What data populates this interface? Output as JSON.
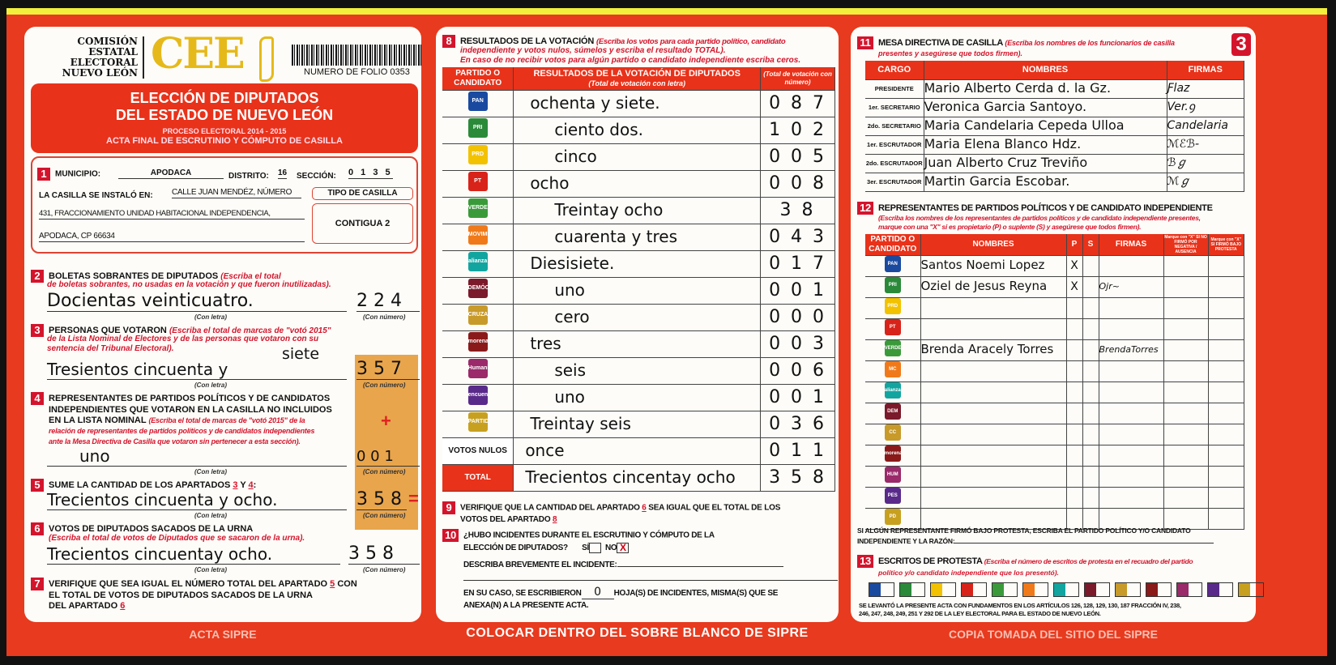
{
  "header": {
    "org": "COMISIÓN ESTATAL ELECTORAL NUEVO LEÓN",
    "org_lines": [
      "COMISIÓN",
      "ESTATAL",
      "ELECTORAL",
      "NUEVO LEÓN"
    ],
    "logo": "CEE",
    "folio": "NUMERO DE FOLIO 0353",
    "title1": "ELECCIÓN DE DIPUTADOS",
    "title2": "DEL ESTADO DE NUEVO LEÓN",
    "process": "PROCESO ELECTORAL 2014 - 2015",
    "acta": "ACTA FINAL DE ESCRUTINIO Y CÓMPUTO DE CASILLA",
    "page_number": "3"
  },
  "s1": {
    "num": "1",
    "municipio_label": "MUNICIPIO:",
    "municipio": "APODACA",
    "distrito_label": "DISTRITO:",
    "distrito": "16",
    "seccion_label": "SECCIÓN:",
    "seccion": "0 1 3 5",
    "instalo_label": "LA CASILLA SE INSTALÓ EN:",
    "address1": "CALLE JUAN MENDÉZ, NÚMERO",
    "address2": "431, FRACCIONAMIENTO UNIDAD HABITACIONAL INDEPENDENCIA,",
    "address3": "APODACA, CP 66634",
    "tipo_label": "TIPO DE CASILLA",
    "tipo": "CONTIGUA 2"
  },
  "labels": {
    "con_letra": "(Con letra)",
    "con_numero": "(Con número)"
  },
  "s2": {
    "num": "2",
    "title": "BOLETAS SOBRANTES DE DIPUTADOS",
    "note1": "(Escriba el total",
    "note2": "de boletas sobrantes, no usadas en la votación y que fueron inutilizadas).",
    "letra": "Docientas veinticuatro.",
    "numero": "2 2 4"
  },
  "s3": {
    "num": "3",
    "title": "PERSONAS QUE VOTARON",
    "note1": "(Escriba el total de marcas de \"votó 2015\"",
    "note2": "de la Lista Nominal de Electores y de las personas que votaron con su",
    "note3": "sentencia del Tribunal Electoral).",
    "letra": "Tresientos cincuenta y",
    "correction": "siete",
    "numero": "3 5 7"
  },
  "s4": {
    "num": "4",
    "title1": "REPRESENTANTES DE PARTIDOS POLÍTICOS Y DE CANDIDATOS",
    "title2": "INDEPENDIENTES QUE VOTARON EN LA CASILLA NO INCLUIDOS",
    "title3": "EN LA LISTA NOMINAL",
    "note1": "(Escriba el total de marcas de \"votó 2015\" de la",
    "note2": "relación de representantes de partidos políticos y de candidatos independientes",
    "note3": "ante la Mesa Directiva de Casilla que votaron sin pertenecer a esta sección).",
    "letra": "uno",
    "numero": "0 0 1",
    "plus": "+"
  },
  "s5": {
    "num": "5",
    "title": "SUME LA CANTIDAD DE LOS APARTADOS",
    "a": "3",
    "y": "Y",
    "b": "4",
    "colon": ":",
    "letra": "Trecientos cincuenta y ocho.",
    "numero": "3 5 8",
    "equals": "="
  },
  "s6": {
    "num": "6",
    "title": "VOTOS DE DIPUTADOS SACADOS DE LA URNA",
    "note": "(Escriba el total de votos de Diputados que se sacaron de la urna).",
    "letra": "Trecientos cincuentay ocho.",
    "numero": "3 5 8"
  },
  "s7": {
    "num": "7",
    "text1": "VERIFIQUE QUE SEA IGUAL EL NÚMERO TOTAL DEL APARTADO",
    "ref1": "5",
    "text1b": "CON",
    "text2": "EL TOTAL DE VOTOS DE DIPUTADOS SACADOS DE LA URNA",
    "text3": "DEL APARTADO",
    "ref2": "6"
  },
  "s8": {
    "num": "8",
    "title": "RESULTADOS DE LA VOTACIÓN",
    "note1": "(Escriba los votos para cada partido político, candidato",
    "note2": "independiente y votos nulos, súmelos y escriba el resultado TOTAL).",
    "note3": "En caso de no recibir votos para algún partido o candidato independiente escriba ceros.",
    "col1": "PARTIDO O CANDIDATO",
    "col2": "RESULTADOS DE LA VOTACIÓN DE DIPUTADOS",
    "col2sub": "(Total de votación con letra)",
    "col3": "(Total de votación con número)",
    "rows": [
      {
        "party": "PAN",
        "color": "#1a4aa0",
        "letra": "ochenta y siete.",
        "numero": "0 8 7"
      },
      {
        "party": "PRI",
        "color": "#2a8a3a",
        "letra": "ciento dos.",
        "numero": "1 0 2"
      },
      {
        "party": "PRD",
        "color": "#f2c200",
        "letra": "cinco",
        "numero": "0 0 5"
      },
      {
        "party": "PT",
        "color": "#d8231a",
        "letra": "ocho",
        "numero": "0 0 8"
      },
      {
        "party": "VERDE",
        "color": "#3a9a3a",
        "letra": "Treintay ocho",
        "numero": "3 8"
      },
      {
        "party": "MOVIMIENTO CIUDADANO",
        "color": "#f07a1a",
        "letra": "cuarenta y tres",
        "numero": "0 4 3"
      },
      {
        "party": "alianza",
        "color": "#12a5a0",
        "letra": "Diesisiete.",
        "numero": "0 1 7"
      },
      {
        "party": "DEMÓCRATA",
        "color": "#7a1a2a",
        "letra": "uno",
        "numero": "0 0 1"
      },
      {
        "party": "CRUZADA CIUDADANA",
        "color": "#c89a2a",
        "letra": "cero",
        "numero": "0 0 0"
      },
      {
        "party": "morena",
        "color": "#8a1a1a",
        "letra": "tres",
        "numero": "0 0 3"
      },
      {
        "party": "Humanista",
        "color": "#9a2a6a",
        "letra": "seis",
        "numero": "0 0 6"
      },
      {
        "party": "encuentro social",
        "color": "#5a2a8a",
        "letra": "uno",
        "numero": "0 0 1"
      },
      {
        "party": "PARTIDO DEMÓCRATA",
        "color": "#c8a020",
        "letra": "Treintay seis",
        "numero": "0 3 6"
      }
    ],
    "nulos_label": "VOTOS NULOS",
    "nulos_letra": "once",
    "nulos_numero": "0 1 1",
    "total_label": "TOTAL",
    "total_letra": "Trecientos cincentay ocho",
    "total_numero": "3 5 8"
  },
  "s9": {
    "num": "9",
    "text1": "VERIFIQUE QUE LA CANTIDAD DEL APARTADO",
    "ref1": "6",
    "text1b": "SEA IGUAL QUE EL TOTAL DE LOS",
    "text2": "VOTOS DEL APARTADO",
    "ref2": "8"
  },
  "s10": {
    "num": "10",
    "q1": "¿HUBO INCIDENTES DURANTE EL ESCRUTINIO Y CÓMPUTO DE LA",
    "q2": "ELECCIÓN DE DIPUTADOS?",
    "si": "SÍ",
    "no": "NO",
    "no_mark": "X",
    "describe": "DESCRIBA BREVEMENTE EL INCIDENTE:",
    "hojas1": "EN SU CASO, SE ESCRIBIERON",
    "hojas_value": "0",
    "hojas2": "HOJA(S) DE INCIDENTES, MISMA(S) QUE SE",
    "hojas3": "ANEXA(N) A LA PRESENTE ACTA."
  },
  "banner": "COLOCAR DENTRO DEL SOBRE BLANCO DE SIPRE",
  "s11": {
    "num": "11",
    "title": "MESA DIRECTIVA DE CASILLA",
    "note1": "(Escriba los nombres de los funcionarios de casilla",
    "note2": "presentes y asegúrese que todos firmen).",
    "col_cargo": "CARGO",
    "col_nombres": "NOMBRES",
    "col_firmas": "FIRMAS",
    "rows": [
      {
        "cargo": "PRESIDENTE",
        "nombre": "Mario Alberto Cerda d. la Gz.",
        "firma": "Ƒlaz"
      },
      {
        "cargo": "1er. SECRETARIO",
        "nombre": "Veronica Garcia Santoyo.",
        "firma": "Ver.ꝯ"
      },
      {
        "cargo": "2do. SECRETARIO",
        "nombre": "Maria Candelaria Cepeda Ulloa",
        "firma": "Candelaria"
      },
      {
        "cargo": "1er. ESCRUTADOR",
        "nombre": "Maria Elena Blanco Hdz.",
        "firma": "ℳℰℬ-"
      },
      {
        "cargo": "2do. ESCRUTADOR",
        "nombre": "Juan Alberto Cruz Treviño",
        "firma": "ℬℊ"
      },
      {
        "cargo": "3er. ESCRUTADOR",
        "nombre": "Martin Garcia Escobar.",
        "firma": "ℳℊ"
      }
    ]
  },
  "s12": {
    "num": "12",
    "title": "REPRESENTANTES DE PARTIDOS POLÍTICOS Y DE CANDIDATO INDEPENDIENTE",
    "note1": "(Escriba los nombres de los representantes de partidos políticos y de candidato independiente presentes,",
    "note2": "marque con una \"X\" si es propietario (P) o suplente (S) y asegúrese que todos firmen).",
    "col_partido": "PARTIDO O CANDIDATO",
    "col_nombres": "NOMBRES",
    "col_marque": "Marque con \"X\"",
    "col_p": "P",
    "col_s": "S",
    "col_firmas": "FIRMAS",
    "col_escrito": "Marque con \"X\" SI NO FIRMÓ POR NEGATIVA / AUSENCIA",
    "col_protesta": "Marque con \"X\" SI FIRMÓ BAJO PROTESTA",
    "rows": [
      {
        "party": "PAN",
        "color": "#1a4aa0",
        "nombre": "Santos Noemi Lopez",
        "p": "X",
        "s": "",
        "firma": ""
      },
      {
        "party": "PRI",
        "color": "#2a8a3a",
        "nombre": "Oziel de Jesus Reyna",
        "p": "X",
        "s": "",
        "firma": "Ojr~"
      },
      {
        "party": "PRD",
        "color": "#f2c200",
        "nombre": "",
        "p": "",
        "s": "",
        "firma": ""
      },
      {
        "party": "PT",
        "color": "#d8231a",
        "nombre": "",
        "p": "",
        "s": "",
        "firma": ""
      },
      {
        "party": "VERDE",
        "color": "#3a9a3a",
        "nombre": "Brenda Aracely Torres",
        "p": "",
        "s": "",
        "firma": "BrendaTorres"
      },
      {
        "party": "MC",
        "color": "#f07a1a",
        "nombre": "",
        "p": "",
        "s": "",
        "firma": ""
      },
      {
        "party": "alianza",
        "color": "#12a5a0",
        "nombre": "",
        "p": "",
        "s": "",
        "firma": ""
      },
      {
        "party": "DEM",
        "color": "#7a1a2a",
        "nombre": "",
        "p": "",
        "s": "",
        "firma": ""
      },
      {
        "party": "CC",
        "color": "#c89a2a",
        "nombre": "",
        "p": "",
        "s": "",
        "firma": ""
      },
      {
        "party": "morena",
        "color": "#8a1a1a",
        "nombre": "",
        "p": "",
        "s": "",
        "firma": ""
      },
      {
        "party": "HUM",
        "color": "#9a2a6a",
        "nombre": "",
        "p": "",
        "s": "",
        "firma": ""
      },
      {
        "party": "PES",
        "color": "#5a2a8a",
        "nombre": "",
        "p": "",
        "s": "",
        "firma": ""
      },
      {
        "party": "PD",
        "color": "#c8a020",
        "nombre": "",
        "p": "",
        "s": "",
        "firma": ""
      }
    ],
    "protesta1": "SI ALGÚN REPRESENTANTE FIRMÓ BAJO PROTESTA, ESCRIBA EL PARTIDO POLÍTICO Y/O CANDIDATO",
    "protesta2": "INDEPENDIENTE Y LA RAZÓN:"
  },
  "s13": {
    "num": "13",
    "title": "ESCRITOS DE PROTESTA",
    "note1": "(Escriba el número de escritos de protesta en el recuadro del partido",
    "note2": "político y/o candidato independiente que los presentó).",
    "legal1": "SE LEVANTÓ LA PRESENTE ACTA CON FUNDAMENTOS EN LOS ARTÍCULOS 126, 128, 129, 130, 187 FRACCIÓN IV, 238,",
    "legal2": "246, 247, 248, 249, 251 Y 292 DE LA LEY ELECTORAL PARA EL ESTADO DE NUEVO LEÓN."
  },
  "watermark": {
    "stamp": "ACTA SIPRE",
    "text": "COPIA TOMADA DEL SITIO DEL SIPRE"
  }
}
